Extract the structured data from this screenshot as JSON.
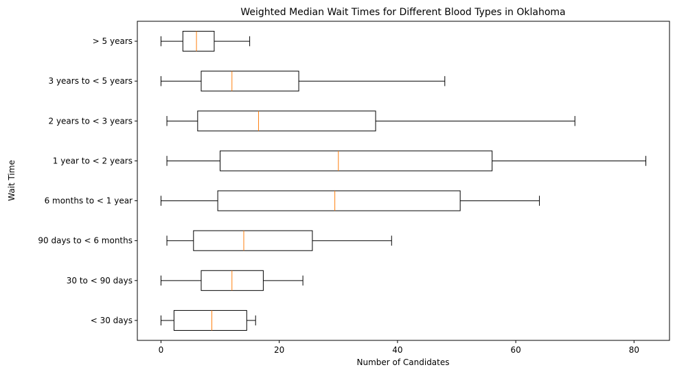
{
  "chart_data": {
    "type": "boxplot",
    "orientation": "horizontal",
    "title": "Weighted Median Wait Times for Different Blood Types in Oklahoma",
    "xlabel": "Number of Candidates",
    "ylabel": "Wait Time",
    "xlim": [
      -4,
      86
    ],
    "xticks": [
      0,
      20,
      40,
      60,
      80
    ],
    "grid": false,
    "colors": {
      "box": "#000000",
      "median": "#ff7f0e",
      "axes": "#000000"
    },
    "categories": [
      "< 30 days",
      "30 to < 90 days",
      "90 days to < 6 months",
      "6 months to < 1 year",
      "1 year to < 2 years",
      "2 years to < 3 years",
      "3 years to < 5 years",
      "> 5 years"
    ],
    "boxes": [
      {
        "whislo": 0,
        "q1": 2.2,
        "med": 8.6,
        "q3": 14.5,
        "whishi": 16
      },
      {
        "whislo": 0,
        "q1": 6.8,
        "med": 12.0,
        "q3": 17.3,
        "whishi": 24
      },
      {
        "whislo": 1,
        "q1": 5.5,
        "med": 14.0,
        "q3": 25.6,
        "whishi": 39
      },
      {
        "whislo": 0,
        "q1": 9.6,
        "med": 29.4,
        "q3": 50.6,
        "whishi": 64
      },
      {
        "whislo": 1,
        "q1": 10.0,
        "med": 30.0,
        "q3": 56.0,
        "whishi": 82
      },
      {
        "whislo": 1,
        "q1": 6.2,
        "med": 16.5,
        "q3": 36.3,
        "whishi": 70
      },
      {
        "whislo": 0,
        "q1": 6.8,
        "med": 12.0,
        "q3": 23.3,
        "whishi": 48
      },
      {
        "whislo": 0,
        "q1": 3.7,
        "med": 6.0,
        "q3": 9.0,
        "whishi": 15
      }
    ]
  }
}
